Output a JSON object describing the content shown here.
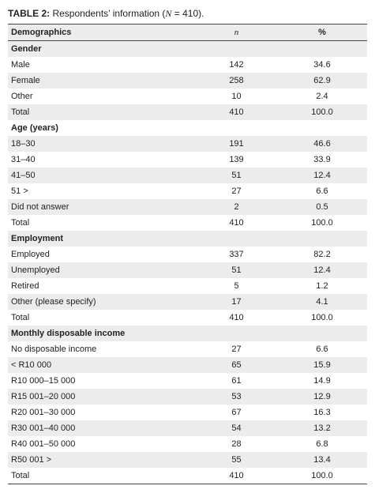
{
  "caption": {
    "label": "TABLE 2:",
    "text_before": "Respondents’ information (",
    "symbol": "N",
    "text_after": " = 410)."
  },
  "table": {
    "header": [
      "Demographics",
      "n",
      "%"
    ],
    "sections": [
      {
        "title": "Gender",
        "rows": [
          [
            "Male",
            142,
            "34.6"
          ],
          [
            "Female",
            258,
            "62.9"
          ],
          [
            "Other",
            10,
            "2.4"
          ],
          [
            "Total",
            410,
            "100.0"
          ]
        ]
      },
      {
        "title": "Age (years)",
        "rows": [
          [
            "18–30",
            191,
            "46.6"
          ],
          [
            "31–40",
            139,
            "33.9"
          ],
          [
            "41–50",
            51,
            "12.4"
          ],
          [
            "51 >",
            27,
            "6.6"
          ],
          [
            "Did not answer",
            2,
            "0.5"
          ],
          [
            "Total",
            410,
            "100.0"
          ]
        ]
      },
      {
        "title": "Employment",
        "rows": [
          [
            "Employed",
            337,
            "82.2"
          ],
          [
            "Unemployed",
            51,
            "12.4"
          ],
          [
            "Retired",
            5,
            "1.2"
          ],
          [
            "Other (please specify)",
            17,
            "4.1"
          ],
          [
            "Total",
            410,
            "100.0"
          ]
        ]
      },
      {
        "title": "Monthly disposable income",
        "rows": [
          [
            "No disposable income",
            27,
            "6.6"
          ],
          [
            "< R10 000",
            65,
            "15.9"
          ],
          [
            "R10 000–15 000",
            61,
            "14.9"
          ],
          [
            "R15 001–20 000",
            53,
            "12.9"
          ],
          [
            "R20 001–30 000",
            67,
            "16.3"
          ],
          [
            "R30 001–40 000",
            54,
            "13.2"
          ],
          [
            "R40 001–50 000",
            28,
            "6.8"
          ],
          [
            "R50 001 >",
            55,
            "13.4"
          ],
          [
            "Total",
            410,
            "100.0"
          ]
        ]
      }
    ]
  }
}
